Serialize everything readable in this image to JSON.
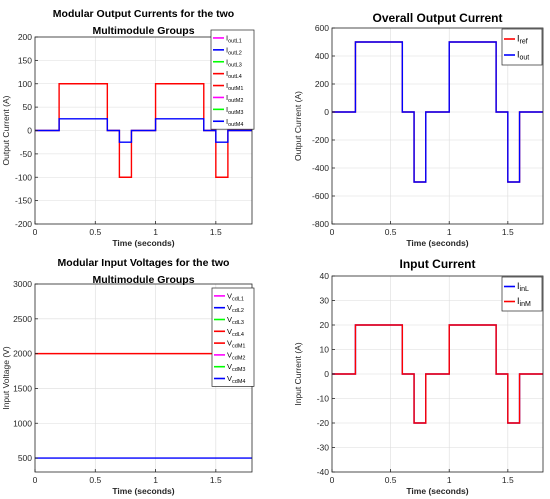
{
  "chart_data": [
    {
      "type": "line",
      "title": [
        "Modular Output Currents for the two",
        "Multimodule Groups"
      ],
      "xlabel": "Time (seconds)",
      "ylabel": "Output Current (A)",
      "xlim": [
        0,
        1.8
      ],
      "ylim": [
        -200,
        200
      ],
      "xticks": [
        0,
        0.5,
        1,
        1.5
      ],
      "xtick_labels": [
        "0",
        "0.5",
        "1",
        "1.5"
      ],
      "yticks": [
        -200,
        -150,
        -100,
        -50,
        0,
        50,
        100,
        150,
        200
      ],
      "ytick_labels": [
        "-200",
        "-150",
        "-100",
        "-50",
        "0",
        "50",
        "100",
        "150",
        "200"
      ],
      "grid": true,
      "legend_position": "top-right",
      "series": [
        {
          "name": "I",
          "sub": "outL1",
          "color": "#ff00ff",
          "legend_only": true,
          "x": [],
          "y": []
        },
        {
          "name": "I",
          "sub": "outL2",
          "color": "#0000ff",
          "legend_only": true,
          "x": [],
          "y": []
        },
        {
          "name": "I",
          "sub": "outL3",
          "color": "#00ff00",
          "legend_only": true,
          "x": [],
          "y": []
        },
        {
          "name": "I",
          "sub": "outL4",
          "color": "#ff0000",
          "x": [
            0,
            0.2,
            0.2,
            0.6,
            0.6,
            0.7,
            0.7,
            0.8,
            0.8,
            1.0,
            1.0,
            1.4,
            1.4,
            1.5,
            1.5,
            1.6,
            1.6,
            1.8
          ],
          "y": [
            0,
            0,
            100,
            100,
            0,
            0,
            -100,
            -100,
            0,
            0,
            100,
            100,
            0,
            0,
            -100,
            -100,
            0,
            0
          ]
        },
        {
          "name": "I",
          "sub": "outM1",
          "color": "#ff0000",
          "legend_only": true,
          "x": [],
          "y": []
        },
        {
          "name": "I",
          "sub": "outM2",
          "color": "#ff00ff",
          "legend_only": true,
          "x": [],
          "y": []
        },
        {
          "name": "I",
          "sub": "outM3",
          "color": "#00ff00",
          "legend_only": true,
          "x": [],
          "y": []
        },
        {
          "name": "I",
          "sub": "outM4",
          "color": "#0000ff",
          "x": [
            0,
            0.2,
            0.2,
            0.6,
            0.6,
            0.7,
            0.7,
            0.8,
            0.8,
            1.0,
            1.0,
            1.4,
            1.4,
            1.5,
            1.5,
            1.6,
            1.6,
            1.8
          ],
          "y": [
            0,
            0,
            25,
            25,
            0,
            0,
            -25,
            -25,
            0,
            0,
            25,
            25,
            0,
            0,
            -25,
            -25,
            0,
            0
          ]
        }
      ]
    },
    {
      "type": "line",
      "title": [
        "Overall Output Current"
      ],
      "xlabel": "Time (seconds)",
      "ylabel": "Output Current (A)",
      "xlim": [
        0,
        1.8
      ],
      "ylim": [
        -800,
        600
      ],
      "xticks": [
        0,
        0.5,
        1,
        1.5
      ],
      "xtick_labels": [
        "0",
        "0.5",
        "1",
        "1.5"
      ],
      "yticks": [
        -800,
        -600,
        -400,
        -200,
        0,
        200,
        400,
        600
      ],
      "ytick_labels": [
        "-800",
        "-600",
        "-400",
        "-200",
        "0",
        "200",
        "400",
        "600"
      ],
      "grid": true,
      "legend_position": "top-right",
      "series": [
        {
          "name": "I",
          "sub": "ref",
          "color": "#ff0000",
          "x": [
            0,
            0.2,
            0.2,
            0.6,
            0.6,
            0.7,
            0.7,
            0.8,
            0.8,
            1.0,
            1.0,
            1.4,
            1.4,
            1.5,
            1.5,
            1.6,
            1.6,
            1.8
          ],
          "y": [
            0,
            0,
            500,
            500,
            0,
            0,
            -500,
            -500,
            0,
            0,
            500,
            500,
            0,
            0,
            -500,
            -500,
            0,
            0
          ]
        },
        {
          "name": "I",
          "sub": "out",
          "color": "#0000ff",
          "x": [
            0,
            0.2,
            0.2,
            0.6,
            0.6,
            0.7,
            0.7,
            0.8,
            0.8,
            1.0,
            1.0,
            1.4,
            1.4,
            1.5,
            1.5,
            1.6,
            1.6,
            1.8
          ],
          "y": [
            0,
            0,
            500,
            500,
            0,
            0,
            -500,
            -500,
            0,
            0,
            500,
            500,
            0,
            0,
            -500,
            -500,
            0,
            0
          ]
        }
      ]
    },
    {
      "type": "line",
      "title": [
        "Modular Input Voltages for the two",
        "Multimodule Groups"
      ],
      "xlabel": "Time (seconds)",
      "ylabel": "Input Voltage (V)",
      "xlim": [
        0,
        1.8
      ],
      "ylim": [
        300,
        3000
      ],
      "xticks": [
        0,
        0.5,
        1,
        1.5
      ],
      "xtick_labels": [
        "0",
        "0.5",
        "1",
        "1.5"
      ],
      "yticks": [
        500,
        1000,
        1500,
        2000,
        2500,
        3000
      ],
      "ytick_labels": [
        "500",
        "1000",
        "1500",
        "2000",
        "2500",
        "3000"
      ],
      "grid": true,
      "legend_position": "top-right",
      "series": [
        {
          "name": "V",
          "sub": "cdL1",
          "color": "#ff00ff",
          "legend_only": true,
          "x": [],
          "y": []
        },
        {
          "name": "V",
          "sub": "cdL2",
          "color": "#0000ff",
          "legend_only": true,
          "x": [],
          "y": []
        },
        {
          "name": "V",
          "sub": "cdL3",
          "color": "#00ff00",
          "legend_only": true,
          "x": [],
          "y": []
        },
        {
          "name": "V",
          "sub": "cdL4",
          "color": "#ff0000",
          "x": [
            0,
            1.8
          ],
          "y": [
            2000,
            2000
          ]
        },
        {
          "name": "V",
          "sub": "cdM1",
          "color": "#ff0000",
          "legend_only": true,
          "x": [],
          "y": []
        },
        {
          "name": "V",
          "sub": "cdM2",
          "color": "#ff00ff",
          "legend_only": true,
          "x": [],
          "y": []
        },
        {
          "name": "V",
          "sub": "cdM3",
          "color": "#00ff00",
          "legend_only": true,
          "x": [],
          "y": []
        },
        {
          "name": "V",
          "sub": "cdM4",
          "color": "#0000ff",
          "x": [
            0,
            1.8
          ],
          "y": [
            500,
            500
          ]
        }
      ]
    },
    {
      "type": "line",
      "title": [
        "Input Current"
      ],
      "xlabel": "Time (seconds)",
      "ylabel": "Input Current (A)",
      "xlim": [
        0,
        1.8
      ],
      "ylim": [
        -40,
        40
      ],
      "xticks": [
        0,
        0.5,
        1,
        1.5
      ],
      "xtick_labels": [
        "0",
        "0.5",
        "1",
        "1.5"
      ],
      "yticks": [
        -40,
        -30,
        -20,
        -10,
        0,
        10,
        20,
        30,
        40
      ],
      "ytick_labels": [
        "-40",
        "-30",
        "-20",
        "-10",
        "0",
        "10",
        "20",
        "30",
        "40"
      ],
      "grid": true,
      "legend_position": "top-right",
      "series": [
        {
          "name": "I",
          "sub": "inL",
          "color": "#0000ff",
          "x": [
            0,
            0.2,
            0.2,
            0.6,
            0.6,
            0.7,
            0.7,
            0.8,
            0.8,
            1.0,
            1.0,
            1.4,
            1.4,
            1.5,
            1.5,
            1.6,
            1.6,
            1.8
          ],
          "y": [
            0,
            0,
            20,
            20,
            0,
            0,
            -20,
            -20,
            0,
            0,
            20,
            20,
            0,
            0,
            -20,
            -20,
            0,
            0
          ]
        },
        {
          "name": "I",
          "sub": "inM",
          "color": "#ff0000",
          "x": [
            0,
            0.2,
            0.2,
            0.6,
            0.6,
            0.7,
            0.7,
            0.8,
            0.8,
            1.0,
            1.0,
            1.4,
            1.4,
            1.5,
            1.5,
            1.6,
            1.6,
            1.8
          ],
          "y": [
            0,
            0,
            20,
            20,
            0,
            0,
            -20,
            -20,
            0,
            0,
            20,
            20,
            0,
            0,
            -20,
            -20,
            0,
            0
          ]
        }
      ]
    }
  ]
}
